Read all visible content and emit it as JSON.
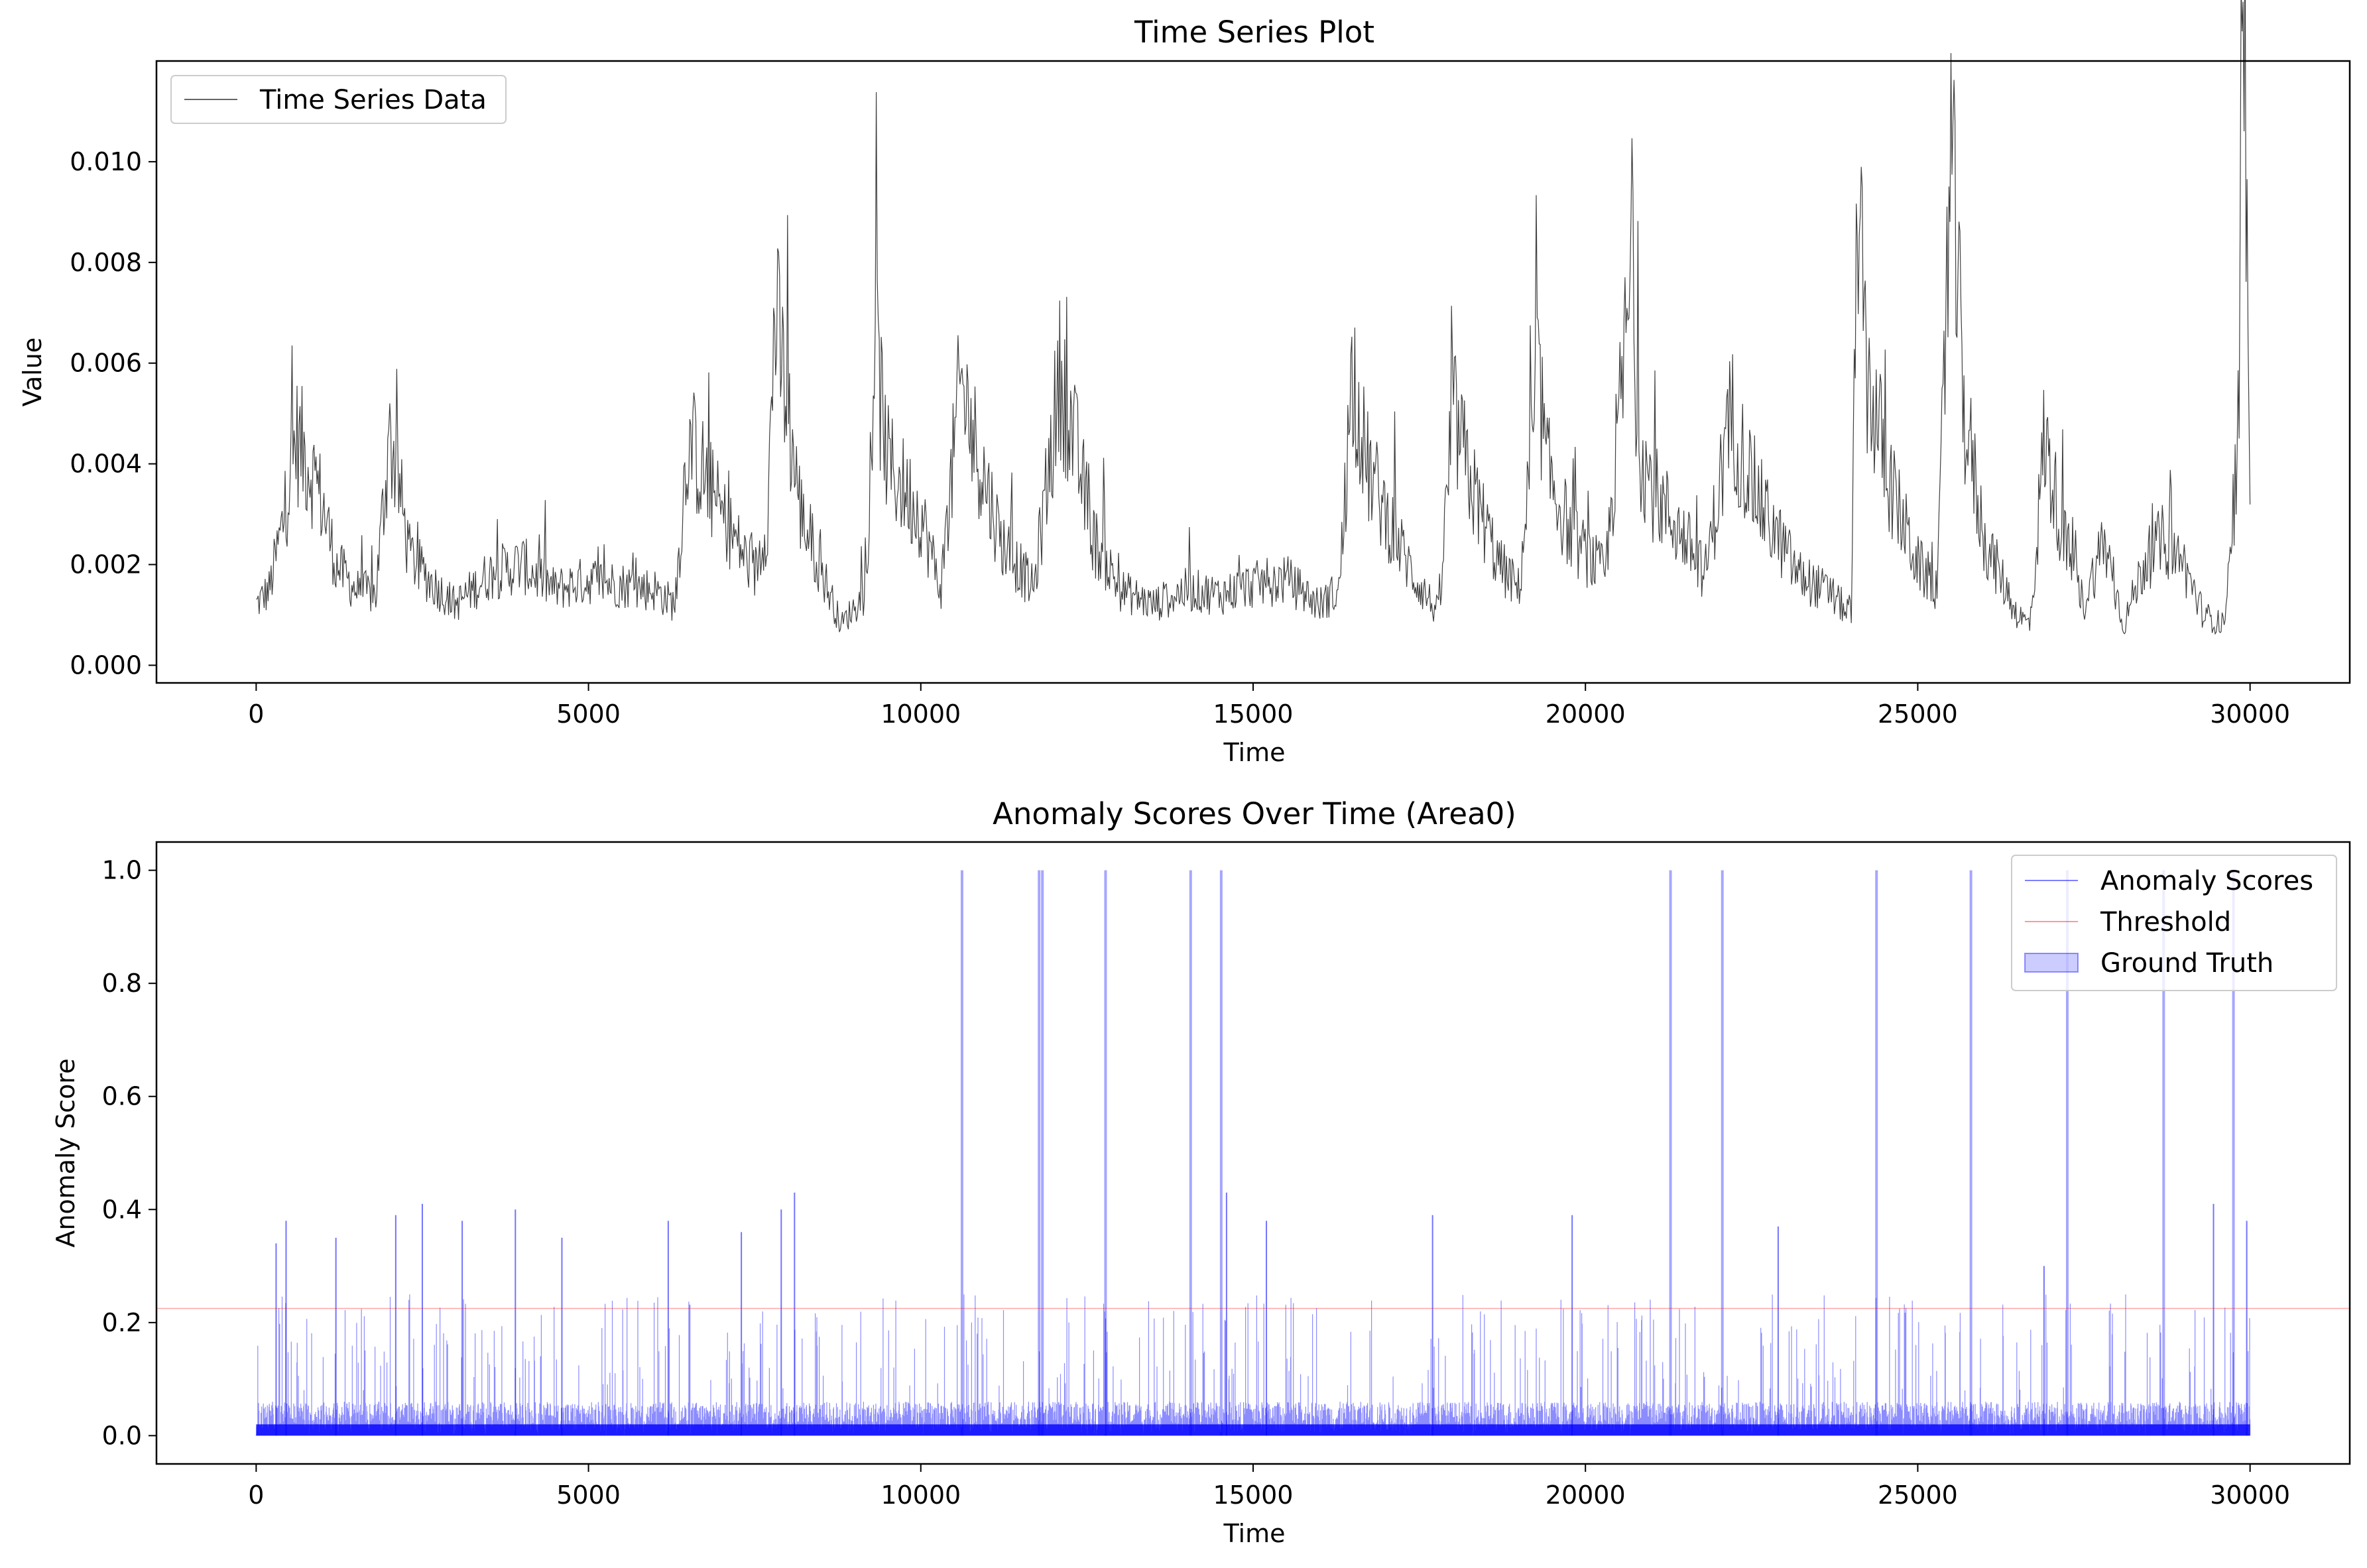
{
  "chart_data": [
    {
      "type": "line",
      "title": "Time Series Plot",
      "xlabel": "Time",
      "ylabel": "Value",
      "xlim": [
        -1500,
        31500
      ],
      "ylim": [
        -0.00035,
        0.012
      ],
      "xticks": [
        0,
        5000,
        10000,
        15000,
        20000,
        25000,
        30000
      ],
      "yticks": [
        0.0,
        0.002,
        0.004,
        0.006,
        0.008,
        0.01
      ],
      "ytick_labels": [
        "0.000",
        "0.002",
        "0.004",
        "0.006",
        "0.008",
        "0.010"
      ],
      "legend": "upper-left",
      "grid": false,
      "series": [
        {
          "name": "Time Series Data",
          "color": "#000000",
          "x": [
            0,
            200,
            400,
            600,
            800,
            1000,
            1200,
            1500,
            1800,
            2000,
            2100,
            2300,
            2600,
            3000,
            3500,
            4000,
            4500,
            5000,
            5500,
            6000,
            6300,
            6500,
            7000,
            7500,
            7700,
            7800,
            8200,
            8800,
            9200,
            9300,
            9500,
            10000,
            10300,
            10600,
            10800,
            11200,
            11700,
            12100,
            12300,
            12600,
            13000,
            13500,
            14000,
            14500,
            15000,
            15500,
            16000,
            16300,
            16500,
            16700,
            17000,
            17400,
            17800,
            18000,
            18300,
            18700,
            19000,
            19300,
            19400,
            19800,
            20300,
            20700,
            20800,
            21000,
            21500,
            21800,
            22200,
            22400,
            22700,
            23200,
            23700,
            24000,
            24100,
            24200,
            24600,
            25000,
            25300,
            25500,
            25700,
            26000,
            26500,
            26700,
            26900,
            27200,
            27500,
            27800,
            28100,
            28400,
            28700,
            29000,
            29300,
            29600,
            29800,
            29900,
            30000
          ],
          "y": [
            0.0012,
            0.0015,
            0.0028,
            0.0045,
            0.004,
            0.0032,
            0.002,
            0.0015,
            0.0014,
            0.0045,
            0.004,
            0.0022,
            0.0017,
            0.0012,
            0.0018,
            0.002,
            0.0015,
            0.0017,
            0.0016,
            0.0015,
            0.0012,
            0.0045,
            0.003,
            0.0018,
            0.003,
            0.007,
            0.003,
            0.0008,
            0.0015,
            0.0065,
            0.004,
            0.003,
            0.0015,
            0.0056,
            0.0045,
            0.0025,
            0.0015,
            0.0058,
            0.0045,
            0.0025,
            0.0015,
            0.0012,
            0.0015,
            0.0014,
            0.0016,
            0.0017,
            0.0012,
            0.0015,
            0.006,
            0.004,
            0.003,
            0.0018,
            0.001,
            0.005,
            0.0035,
            0.002,
            0.0015,
            0.0058,
            0.004,
            0.0025,
            0.0018,
            0.0078,
            0.0045,
            0.0035,
            0.0025,
            0.0018,
            0.005,
            0.004,
            0.003,
            0.0018,
            0.0014,
            0.001,
            0.0098,
            0.006,
            0.0035,
            0.002,
            0.0015,
            0.0101,
            0.005,
            0.0025,
            0.001,
            0.0008,
            0.0045,
            0.0025,
            0.0012,
            0.0025,
            0.0008,
            0.002,
            0.0025,
            0.002,
            0.001,
            0.0008,
            0.003,
            0.0114,
            0.0044
          ]
        }
      ]
    },
    {
      "type": "line",
      "title": "Anomaly Scores Over Time (Area0)",
      "xlabel": "Time",
      "ylabel": "Anomaly Score",
      "xlim": [
        -1500,
        31500
      ],
      "ylim": [
        -0.05,
        1.05
      ],
      "xticks": [
        0,
        5000,
        10000,
        15000,
        20000,
        25000,
        30000
      ],
      "yticks": [
        0.0,
        0.2,
        0.4,
        0.6,
        0.8,
        1.0
      ],
      "ytick_labels": [
        "0.0",
        "0.2",
        "0.4",
        "0.6",
        "0.8",
        "1.0"
      ],
      "legend": "upper-right",
      "grid": false,
      "series": [
        {
          "name": "Anomaly Scores",
          "color": "#0000ff",
          "baseline_level": 0.03,
          "spikes": [
            {
              "x": 300,
              "y": 0.34
            },
            {
              "x": 450,
              "y": 0.38
            },
            {
              "x": 1200,
              "y": 0.35
            },
            {
              "x": 2100,
              "y": 0.39
            },
            {
              "x": 2500,
              "y": 0.41
            },
            {
              "x": 3100,
              "y": 0.38
            },
            {
              "x": 3900,
              "y": 0.4
            },
            {
              "x": 4600,
              "y": 0.35
            },
            {
              "x": 6200,
              "y": 0.38
            },
            {
              "x": 7300,
              "y": 0.36
            },
            {
              "x": 7900,
              "y": 0.4
            },
            {
              "x": 8100,
              "y": 0.43
            },
            {
              "x": 10620,
              "y": 1.0
            },
            {
              "x": 11780,
              "y": 1.0
            },
            {
              "x": 11830,
              "y": 1.0
            },
            {
              "x": 12780,
              "y": 1.0
            },
            {
              "x": 14060,
              "y": 1.0
            },
            {
              "x": 14520,
              "y": 1.0
            },
            {
              "x": 14600,
              "y": 0.43
            },
            {
              "x": 15200,
              "y": 0.38
            },
            {
              "x": 17700,
              "y": 0.39
            },
            {
              "x": 19800,
              "y": 0.39
            },
            {
              "x": 21280,
              "y": 1.0
            },
            {
              "x": 22060,
              "y": 1.0
            },
            {
              "x": 22900,
              "y": 0.37
            },
            {
              "x": 24380,
              "y": 1.0
            },
            {
              "x": 25800,
              "y": 1.0
            },
            {
              "x": 26900,
              "y": 0.3
            },
            {
              "x": 27250,
              "y": 1.0
            },
            {
              "x": 28700,
              "y": 1.0
            },
            {
              "x": 29450,
              "y": 0.41
            },
            {
              "x": 29750,
              "y": 1.0
            },
            {
              "x": 29950,
              "y": 0.38
            }
          ]
        },
        {
          "name": "Threshold",
          "color": "#ff0000",
          "value": 0.225
        },
        {
          "name": "Ground Truth",
          "color": "#0000ff"
        }
      ]
    }
  ]
}
